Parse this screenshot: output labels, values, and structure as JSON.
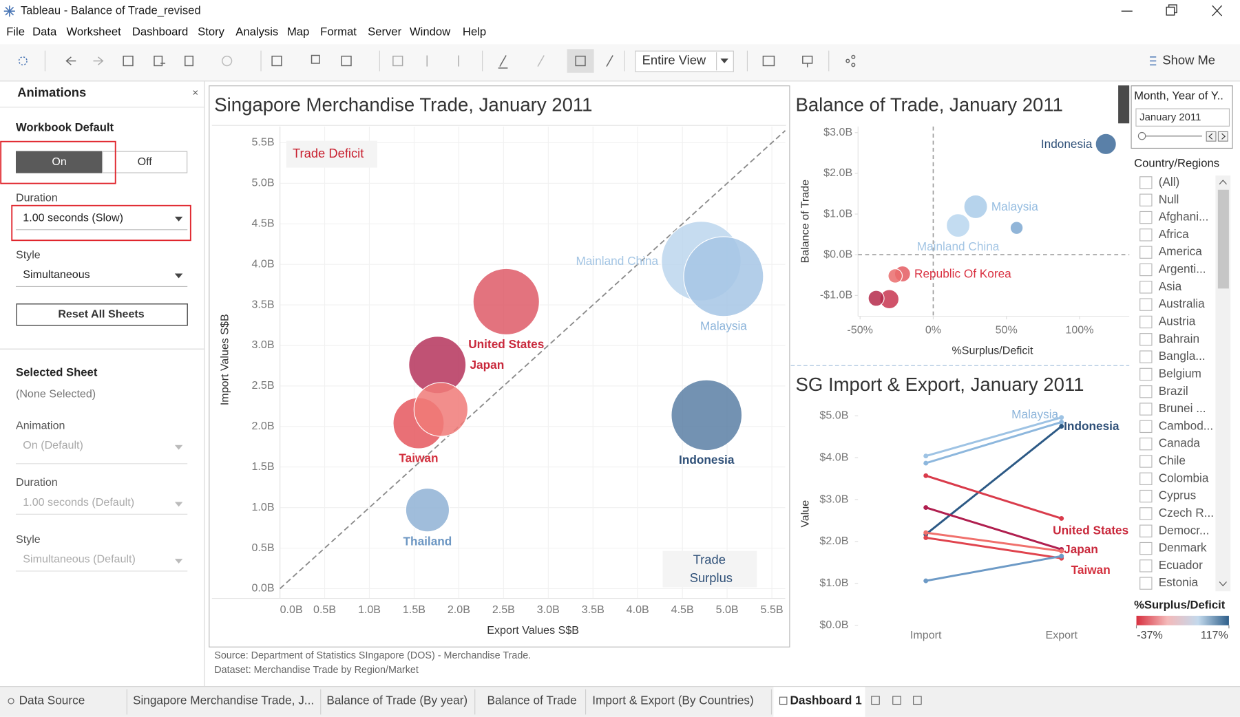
{
  "window": {
    "title": "Tableau - Balance of Trade_revised"
  },
  "menu": [
    "File",
    "Data",
    "Worksheet",
    "Dashboard",
    "Story",
    "Analysis",
    "Map",
    "Format",
    "Server",
    "Window",
    "Help"
  ],
  "toolbar": {
    "fit": "Entire View",
    "show_me": "Show Me"
  },
  "animations": {
    "title": "Animations",
    "close": "×",
    "workbook_default": "Workbook Default",
    "on": "On",
    "off": "Off",
    "duration_label": "Duration",
    "duration_value": "1.00 seconds (Slow)",
    "style_label": "Style",
    "style_value": "Simultaneous",
    "reset": "Reset All Sheets",
    "selected_sheet": "Selected Sheet",
    "none_selected": "(None Selected)",
    "sheet_animation_label": "Animation",
    "sheet_animation_value": "On (Default)",
    "sheet_duration_label": "Duration",
    "sheet_duration_value": "1.00 seconds (Default)",
    "sheet_style_label": "Style",
    "sheet_style_value": "Simultaneous (Default)"
  },
  "chart_data": [
    {
      "type": "scatter",
      "title": "Singapore Merchandise Trade, January 2011",
      "x_label": "Export Values S$B",
      "y_label": "Import Values S$B",
      "xlim": [
        0,
        5.65
      ],
      "ylim": [
        -0.12,
        5.7
      ],
      "xticks": [
        {
          "value": 0,
          "label": "0.0B"
        },
        {
          "value": 0.5,
          "label": "0.5B"
        },
        {
          "value": 1,
          "label": "1.0B"
        },
        {
          "value": 1.5,
          "label": "1.5B"
        },
        {
          "value": 2,
          "label": "2.0B"
        },
        {
          "value": 2.5,
          "label": "2.5B"
        },
        {
          "value": 3,
          "label": "3.0B"
        },
        {
          "value": 3.5,
          "label": "3.5B"
        },
        {
          "value": 4,
          "label": "4.0B"
        },
        {
          "value": 4.5,
          "label": "4.5B"
        },
        {
          "value": 5,
          "label": "5.0B"
        },
        {
          "value": 5.5,
          "label": "5.5B"
        }
      ],
      "yticks": [
        {
          "value": 0,
          "label": "0.0B"
        },
        {
          "value": 0.5,
          "label": "0.5B"
        },
        {
          "value": 1,
          "label": "1.0B"
        },
        {
          "value": 1.5,
          "label": "1.5B"
        },
        {
          "value": 2,
          "label": "2.0B"
        },
        {
          "value": 2.5,
          "label": "2.5B"
        },
        {
          "value": 3,
          "label": "3.0B"
        },
        {
          "value": 3.5,
          "label": "3.5B"
        },
        {
          "value": 4,
          "label": "4.0B"
        },
        {
          "value": 4.5,
          "label": "4.5B"
        },
        {
          "value": 5,
          "label": "5.0B"
        },
        {
          "value": 5.5,
          "label": "5.5B"
        }
      ],
      "annotations": [
        "Trade Deficit",
        "Trade Surplus"
      ],
      "points": [
        {
          "label": "United States",
          "x": 2.53,
          "y": 3.54,
          "size": 6.07,
          "color": "#de5a67",
          "label_color": "#c9283b"
        },
        {
          "label": "Japan",
          "x": 1.76,
          "y": 2.76,
          "size": 4.52,
          "color": "#b5345c",
          "label_color": "#c9283b"
        },
        {
          "label": "Taiwan",
          "x": 1.55,
          "y": 2.04,
          "size": 3.59,
          "color": "#e5575e",
          "label_color": "#d3303e"
        },
        {
          "label": null,
          "x": 1.8,
          "y": 2.21,
          "size": 4.01,
          "color": "#f07a78",
          "label_color": null
        },
        {
          "label": "Thailand",
          "x": 1.65,
          "y": 0.97,
          "size": 2.62,
          "color": "#8fb1d5",
          "label_color": "#6d97c3"
        },
        {
          "label": "Indonesia",
          "x": 4.77,
          "y": 2.14,
          "size": 6.91,
          "color": "#5b7fa4",
          "label_color": "#2f5078"
        },
        {
          "label": "Mainland China",
          "x": 4.71,
          "y": 4.04,
          "size": 8.75,
          "color": "#bcd6ed",
          "label_color": "#a3c5e4"
        },
        {
          "label": "Malaysia",
          "x": 4.96,
          "y": 3.85,
          "size": 8.81,
          "color": "#a6c6e5",
          "label_color": "#8cb4da"
        }
      ],
      "source": [
        "Source: Department of Statistics SIngapore (DOS) - Merchandise Trade.",
        "Dataset: Merchandise Trade by Region/Market"
      ]
    },
    {
      "type": "scatter",
      "title": "Balance of Trade, January 2011",
      "x_label": "%Surplus/Deficit",
      "y_label": "Balance of Trade",
      "xlim": [
        -51.4,
        134
      ],
      "ylim": [
        -1.51,
        3.15
      ],
      "xticks": [
        {
          "value": -50,
          "label": "-50%"
        },
        {
          "value": 0,
          "label": "0%"
        },
        {
          "value": 50,
          "label": "50%"
        },
        {
          "value": 100,
          "label": "100%"
        }
      ],
      "yticks": [
        {
          "value": -1,
          "label": "-$1.0B"
        },
        {
          "value": 0,
          "label": "$0.0B"
        },
        {
          "value": 1,
          "label": "$1.0B"
        },
        {
          "value": 2,
          "label": "$2.0B"
        },
        {
          "value": 3,
          "label": "$3.0B"
        }
      ],
      "points": [
        {
          "label": "Indonesia",
          "x": 118,
          "y": 2.72,
          "size": 6.9,
          "color": "#3d6a99",
          "label_color": "#2f5078"
        },
        {
          "label": "Malaysia",
          "x": 29,
          "y": 1.18,
          "size": 8.8,
          "color": "#a9cbe9",
          "label_color": "#94bce0"
        },
        {
          "label": "Mainland China",
          "x": 17,
          "y": 0.72,
          "size": 8.75,
          "color": "#b8d6ee",
          "label_color": "#a3c5e4"
        },
        {
          "label": null,
          "x": 57,
          "y": 0.66,
          "size": 2.6,
          "color": "#7ea8d1",
          "label_color": null
        },
        {
          "label": "Republic Of Korea",
          "x": -21,
          "y": -0.47,
          "size": 4,
          "color": "#e45c62",
          "label_color": "#d93040"
        },
        {
          "label": null,
          "x": -26,
          "y": -0.52,
          "size": 3.2,
          "color": "#ea6c6c",
          "label_color": null
        },
        {
          "label": null,
          "x": -30,
          "y": -1.09,
          "size": 5.8,
          "color": "#c83550",
          "label_color": null
        },
        {
          "label": null,
          "x": -39,
          "y": -1.07,
          "size": 4,
          "color": "#b52a4b",
          "label_color": null
        }
      ]
    },
    {
      "type": "line",
      "title": "SG Import & Export, January 2011",
      "y_label": "Value",
      "categories": [
        "Import",
        "Export"
      ],
      "ylim": [
        0,
        5.17
      ],
      "yticks": [
        {
          "value": 0,
          "label": "$0.0B"
        },
        {
          "value": 1,
          "label": "$1.0B"
        },
        {
          "value": 2,
          "label": "$2.0B"
        },
        {
          "value": 3,
          "label": "$3.0B"
        },
        {
          "value": 4,
          "label": "$4.0B"
        },
        {
          "value": 5,
          "label": "$5.0B"
        }
      ],
      "series": [
        {
          "name": "Malaysia",
          "color": "#9ec3e4",
          "label_color": "#8cb4da",
          "values": [
            4.04,
            4.96
          ]
        },
        {
          "name": null,
          "color": "#8db7dd",
          "label_color": null,
          "values": [
            3.87,
            4.85
          ]
        },
        {
          "name": "Indonesia",
          "color": "#2c5985",
          "label_color": "#2f5078",
          "values": [
            2.17,
            4.75
          ]
        },
        {
          "name": "United States",
          "color": "#d93b4b",
          "label_color": "#c9283b",
          "values": [
            3.57,
            2.55
          ]
        },
        {
          "name": "Japan",
          "color": "#b01f4f",
          "label_color": "#c9283b",
          "values": [
            2.81,
            1.81
          ]
        },
        {
          "name": "Taiwan",
          "color": "#e0444e",
          "label_color": "#d3303e",
          "values": [
            2.09,
            1.6
          ]
        },
        {
          "name": null,
          "color": "#f0706c",
          "label_color": null,
          "values": [
            2.21,
            1.77
          ]
        },
        {
          "name": null,
          "color": "#6d9ac6",
          "label_color": null,
          "values": [
            1.06,
            1.65
          ]
        }
      ]
    }
  ],
  "filter": {
    "month_title": "Month, Year of Y..",
    "month_value": "January 2011",
    "country_title": "Country/Regions",
    "countries": [
      "(All)",
      "Null",
      "Afghani...",
      "Africa",
      "America",
      "Argenti...",
      "Asia",
      "Australia",
      "Austria",
      "Bahrain",
      "Bangla...",
      "Belgium",
      "Brazil",
      "Brunei ...",
      "Cambod...",
      "Canada",
      "Chile",
      "Colombia",
      "Cyprus",
      "Czech R...",
      "Democr...",
      "Denmark",
      "Ecuador",
      "Estonia"
    ]
  },
  "legend": {
    "title": "%Surplus/Deficit",
    "min": {
      "value": -37,
      "label": "-37%"
    },
    "max": {
      "value": 117,
      "label": "117%"
    },
    "colors": [
      "#d7303f",
      "#f4b9b9",
      "#c3d9ec",
      "#2e5f8a"
    ]
  },
  "tabs": [
    "Data Source",
    "Singapore Merchandise Trade, J...",
    "Balance of Trade (By year)",
    "Balance of Trade",
    "Import & Export (By Countries)",
    "Dashboard 1"
  ]
}
